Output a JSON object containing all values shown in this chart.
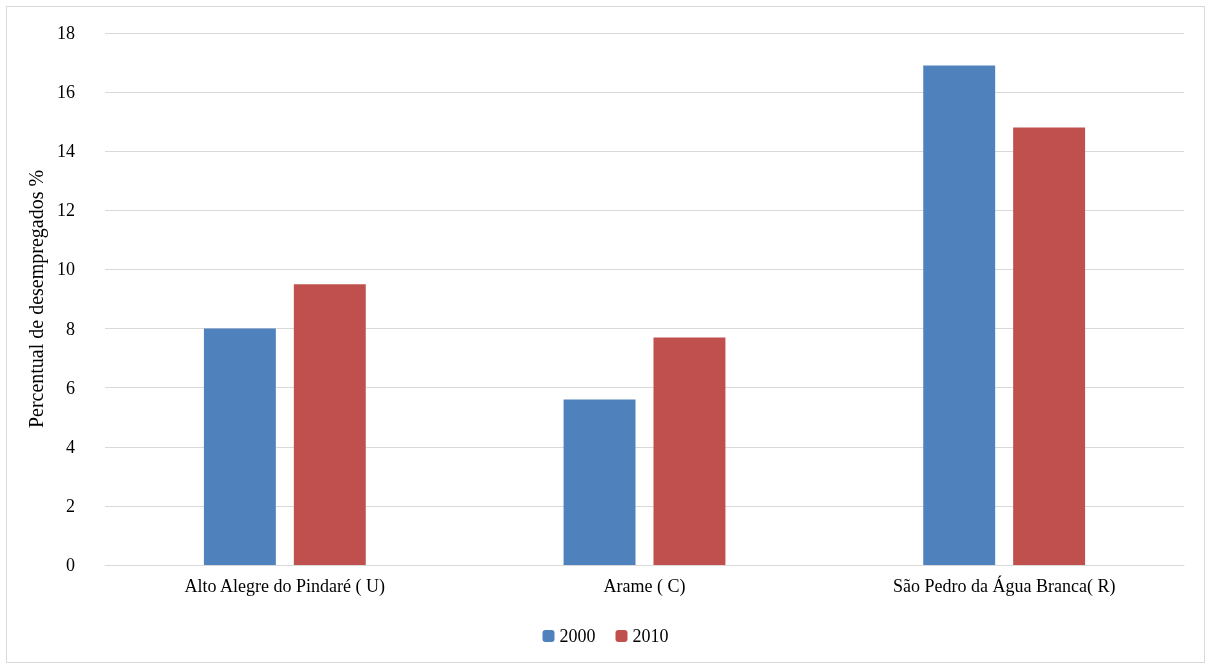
{
  "chart_data": {
    "type": "bar",
    "ylabel": "Percentual de desempregados %",
    "categories": [
      "Alto Alegre do Pindaré ( U)",
      "Arame ( C)",
      "São Pedro da Água Branca( R)"
    ],
    "series": [
      {
        "name": "2000",
        "color": "#4f81bd",
        "values": [
          8.0,
          5.6,
          16.9
        ]
      },
      {
        "name": "2010",
        "color": "#c0504d",
        "values": [
          9.5,
          7.7,
          14.8
        ]
      }
    ],
    "ylim": [
      0,
      18
    ],
    "yticks": [
      0,
      2,
      4,
      6,
      8,
      10,
      12,
      14,
      16,
      18
    ],
    "grid": "y",
    "legend": "bottom"
  }
}
